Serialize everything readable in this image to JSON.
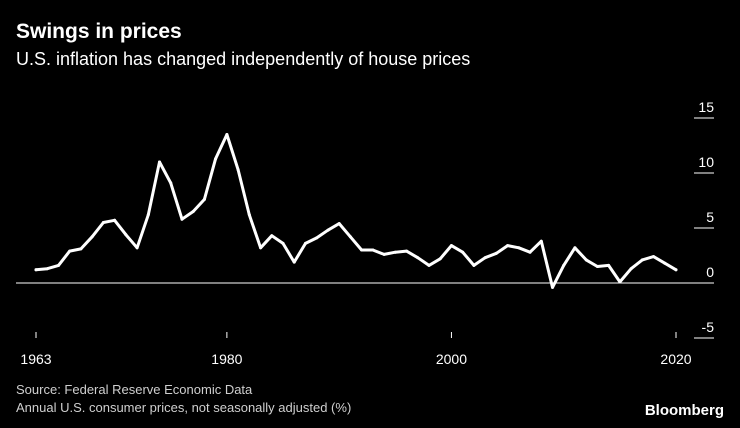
{
  "header": {
    "title": "Swings in prices",
    "subtitle": "U.S. inflation has changed independently of house prices"
  },
  "footer": {
    "source": "Source: Federal Reserve Economic Data",
    "note": "Annual U.S. consumer prices, not seasonally adjusted (%)",
    "brand": "Bloomberg"
  },
  "colors": {
    "background": "#000000",
    "line": "#ffffff",
    "text": "#ffffff"
  },
  "chart_data": {
    "type": "line",
    "title": "Swings in prices",
    "subtitle": "U.S. inflation has changed independently of house prices",
    "xlabel": "",
    "ylabel": "",
    "xlim": [
      1963,
      2020
    ],
    "ylim": [
      -5,
      15
    ],
    "x_ticks": [
      1963,
      1980,
      2000,
      2020
    ],
    "x_tick_labels": [
      "1963",
      "1980",
      "2000",
      "2020"
    ],
    "y_ticks": [
      15,
      10,
      5,
      0,
      -5
    ],
    "y_tick_labels": [
      "15",
      "10",
      "5",
      "0",
      "-5"
    ],
    "grid": "horizontal",
    "legend": "none",
    "series": [
      {
        "x": [
          1963,
          1964,
          1965,
          1966,
          1967,
          1968,
          1969,
          1970,
          1971,
          1972,
          1973,
          1974,
          1975,
          1976,
          1977,
          1978,
          1979,
          1980,
          1981,
          1982,
          1983,
          1984,
          1985,
          1986,
          1987,
          1988,
          1989,
          1990,
          1991,
          1992,
          1993,
          1994,
          1995,
          1996,
          1997,
          1998,
          1999,
          2000,
          2001,
          2002,
          2003,
          2004,
          2005,
          2006,
          2007,
          2008,
          2009,
          2010,
          2011,
          2012,
          2013,
          2014,
          2015,
          2016,
          2017,
          2018,
          2019,
          2020
        ],
        "values": [
          1.2,
          1.3,
          1.6,
          2.9,
          3.1,
          4.2,
          5.5,
          5.7,
          4.4,
          3.2,
          6.2,
          11.0,
          9.1,
          5.8,
          6.5,
          7.6,
          11.3,
          13.5,
          10.3,
          6.2,
          3.2,
          4.3,
          3.6,
          1.9,
          3.6,
          4.1,
          4.8,
          5.4,
          4.2,
          3.0,
          3.0,
          2.6,
          2.8,
          2.9,
          2.3,
          1.6,
          2.2,
          3.4,
          2.8,
          1.6,
          2.3,
          2.7,
          3.4,
          3.2,
          2.8,
          3.8,
          -0.4,
          1.6,
          3.2,
          2.1,
          1.5,
          1.6,
          0.1,
          1.3,
          2.1,
          2.4,
          1.8,
          1.2
        ]
      }
    ]
  }
}
